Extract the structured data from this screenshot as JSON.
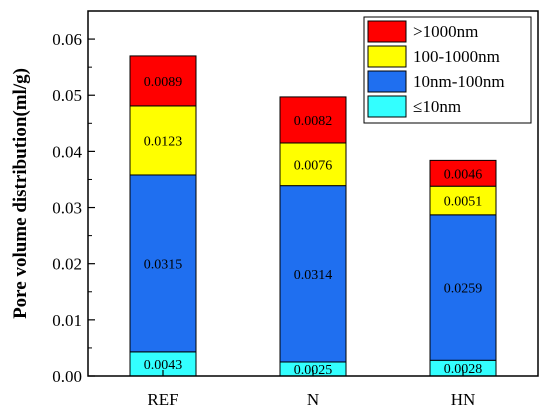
{
  "chart_data": {
    "type": "bar",
    "stacked": true,
    "title": "",
    "xlabel": "",
    "ylabel": "Pore volume distribution(ml/g)",
    "ylim": [
      0,
      0.065
    ],
    "yticks": [
      "0.00",
      "0.01",
      "0.02",
      "0.03",
      "0.04",
      "0.05",
      "0.06"
    ],
    "categories": [
      "REF",
      "N",
      "HN"
    ],
    "grid": false,
    "legend_position": "top-right",
    "series": [
      {
        "name": "≤10nm",
        "color": "#33ffff",
        "values": [
          0.0043,
          0.0025,
          0.0028
        ],
        "labels": [
          "0.0043",
          "0.0025",
          "0.0028"
        ]
      },
      {
        "name": "10nm-100nm",
        "color": "#1f6ff0",
        "values": [
          0.0315,
          0.0314,
          0.0259
        ],
        "labels": [
          "0.0315",
          "0.0314",
          "0.0259"
        ]
      },
      {
        "name": "100-1000nm",
        "color": "#ffff00",
        "values": [
          0.0123,
          0.0076,
          0.0051
        ],
        "labels": [
          "0.0123",
          "0.0076",
          "0.0051"
        ]
      },
      {
        "name": ">1000nm",
        "color": "#ff0000",
        "values": [
          0.0089,
          0.0082,
          0.0046
        ],
        "labels": [
          "0.0089",
          "0.0082",
          "0.0046"
        ]
      }
    ],
    "legend_order": [
      ">1000nm",
      "100-1000nm",
      "10nm-100nm",
      "≤10nm"
    ]
  }
}
